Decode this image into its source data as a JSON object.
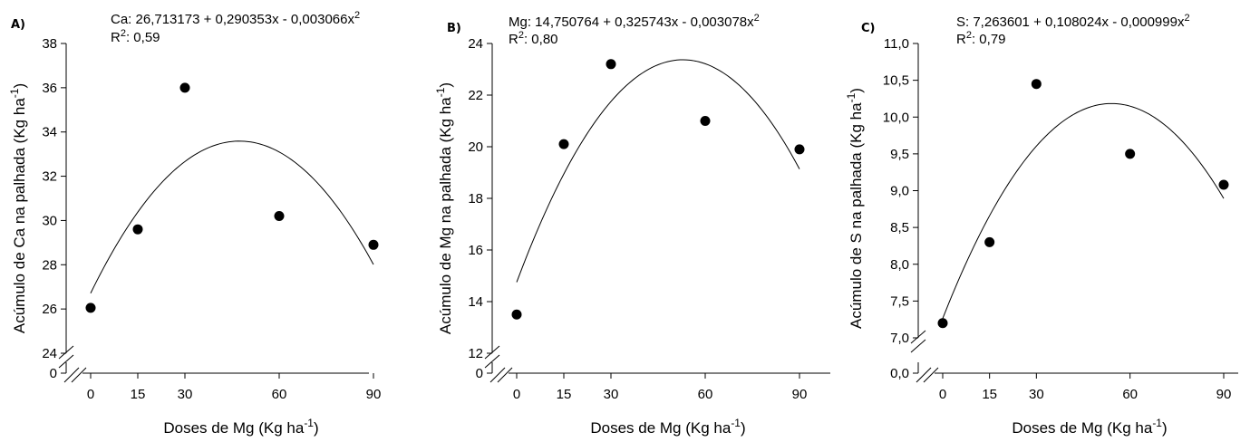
{
  "chart_data": [
    {
      "type": "scatter",
      "panel": "A)",
      "equation": "Ca: 26,713173 + 0,290353x - 0,003066x",
      "equation_sup": "2",
      "r2_prefix": "R",
      "r2_sup": "2",
      "r2_value": ": 0,59",
      "xlabel": "Doses de Mg (Kg ha",
      "xlabel_sup": "-1",
      "xlabel_end": ")",
      "ylabel": "Acúmulo de Ca na palhada (Kg ha",
      "ylabel_sup": "-1",
      "ylabel_end": ")",
      "x": [
        0,
        15,
        30,
        60,
        90
      ],
      "y": [
        26.05,
        29.6,
        36.0,
        30.2,
        28.9
      ],
      "fit": {
        "a": 26.713173,
        "b": 0.290353,
        "c": -0.003066
      },
      "xlim": [
        -5,
        100
      ],
      "ylim": [
        24,
        38
      ],
      "y_break_value": "0",
      "x_ticks": [
        "0",
        "15",
        "30",
        "60",
        "90"
      ],
      "y_ticks": [
        {
          "value": 24,
          "label": "24"
        },
        {
          "value": 26,
          "label": "26"
        },
        {
          "value": 28,
          "label": "28"
        },
        {
          "value": 30,
          "label": "30"
        },
        {
          "value": 32,
          "label": "32"
        },
        {
          "value": 34,
          "label": "34"
        },
        {
          "value": 36,
          "label": "36"
        },
        {
          "value": 38,
          "label": "38"
        }
      ]
    },
    {
      "type": "scatter",
      "panel": "B)",
      "equation": "Mg: 14,750764 + 0,325743x - 0,003078x",
      "equation_sup": "2",
      "r2_prefix": "R",
      "r2_sup": "2",
      "r2_value": ": 0,80",
      "xlabel": "Doses de Mg (Kg ha",
      "xlabel_sup": "-1",
      "xlabel_end": ")",
      "ylabel": "Acúmulo de Mg na palhada (Kg ha",
      "ylabel_sup": "-1",
      "ylabel_end": ")",
      "x": [
        0,
        15,
        30,
        60,
        90
      ],
      "y": [
        13.5,
        20.1,
        23.2,
        21.0,
        19.9
      ],
      "fit": {
        "a": 14.750764,
        "b": 0.325743,
        "c": -0.003078
      },
      "xlim": [
        -5,
        100
      ],
      "ylim": [
        12,
        24
      ],
      "y_break_value": "0",
      "x_ticks": [
        "0",
        "15",
        "30",
        "60",
        "90"
      ],
      "y_ticks": [
        {
          "value": 12,
          "label": "12"
        },
        {
          "value": 14,
          "label": "14"
        },
        {
          "value": 16,
          "label": "16"
        },
        {
          "value": 18,
          "label": "18"
        },
        {
          "value": 20,
          "label": "20"
        },
        {
          "value": 22,
          "label": "22"
        },
        {
          "value": 24,
          "label": "24"
        }
      ]
    },
    {
      "type": "scatter",
      "panel": "C)",
      "equation": "S: 7,263601 + 0,108024x - 0,000999x",
      "equation_sup": "2",
      "r2_prefix": "R",
      "r2_sup": "2",
      "r2_value": ": 0,79",
      "xlabel": "Doses de Mg (Kg ha",
      "xlabel_sup": "-1",
      "xlabel_end": ")",
      "ylabel": "Acúmulo de S na palhada (Kg ha",
      "ylabel_sup": "-1",
      "ylabel_end": ")",
      "x": [
        0,
        15,
        30,
        60,
        90
      ],
      "y": [
        7.2,
        8.3,
        10.45,
        9.5,
        9.08
      ],
      "fit": {
        "a": 7.263601,
        "b": 0.108024,
        "c": -0.000999
      },
      "xlim": [
        -5,
        100
      ],
      "ylim": [
        7.0,
        11.0
      ],
      "y_break_value": "0,0",
      "x_ticks": [
        "0",
        "15",
        "30",
        "60",
        "90"
      ],
      "y_ticks": [
        {
          "value": 7.0,
          "label": "7,0"
        },
        {
          "value": 7.5,
          "label": "7,5"
        },
        {
          "value": 8.0,
          "label": "8,0"
        },
        {
          "value": 8.5,
          "label": "8,5"
        },
        {
          "value": 9.0,
          "label": "9,0"
        },
        {
          "value": 9.5,
          "label": "9,5"
        },
        {
          "value": 10.0,
          "label": "10,0"
        },
        {
          "value": 10.5,
          "label": "10,5"
        },
        {
          "value": 11.0,
          "label": "11,0"
        }
      ]
    }
  ]
}
